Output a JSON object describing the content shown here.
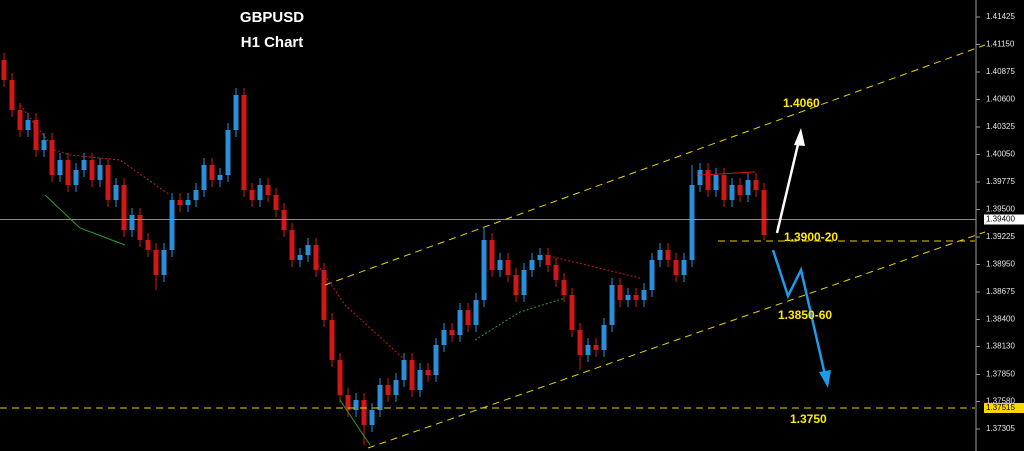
{
  "chart_data": {
    "type": "candlestick",
    "title": "GBPUSD",
    "subtitle": "H1 Chart",
    "annotations": [
      "1.4060",
      "1.3900-20",
      "1.3850-60",
      "1.3750"
    ],
    "up_color": "#2a8fd8",
    "down_color": "#d01818",
    "ylim": [
      1.37085,
      1.41595
    ],
    "yticks": [
      1.41425,
      {
        "value": 1.4115,
        "label": "1.41150"
      },
      1.40875,
      {
        "value": 1.406,
        "label": "1.40600"
      },
      1.40325,
      {
        "value": 1.4005,
        "label": "1.40050"
      },
      1.39775,
      {
        "value": 1.395,
        "label": "1.39500"
      },
      1.39225,
      {
        "value": 1.3895,
        "label": "1.38950"
      },
      1.38675,
      {
        "value": 1.384,
        "label": "1.38400"
      },
      {
        "value": 1.3813,
        "label": "1.38130"
      },
      {
        "value": 1.3785,
        "label": "1.37850"
      },
      {
        "value": 1.3758,
        "label": "1.37580"
      },
      1.37305
    ],
    "price_markers": [
      {
        "value": 1.394,
        "label": "1.39400",
        "color": "#ffffff"
      },
      {
        "value": 1.37515,
        "label": "1.37515",
        "color": "#ffd700"
      }
    ],
    "open": [
      1.40995,
      1.40795,
      1.40495,
      1.40295,
      1.40395,
      1.40095,
      1.40195,
      1.39845,
      1.39995,
      1.39745,
      1.39895,
      1.39995,
      1.39795,
      1.39945,
      1.39595,
      1.39745,
      1.39295,
      1.39445,
      1.39195,
      1.39095,
      1.38845,
      1.39095,
      1.39595,
      1.39545,
      1.39595,
      1.39695,
      1.39945,
      1.39795,
      1.39845,
      1.40295,
      1.40645,
      1.39695,
      1.39595,
      1.39745,
      1.39645,
      1.39495,
      1.39295,
      1.38995,
      1.39045,
      1.39145,
      1.38895,
      1.38395,
      1.37995,
      1.37645,
      1.37495,
      1.37595,
      1.37345,
      1.37495,
      1.37745,
      1.37645,
      1.37795,
      1.37995,
      1.37695,
      1.37895,
      1.37845,
      1.38145,
      1.38295,
      1.38245,
      1.38495,
      1.38345,
      1.38595,
      1.39195,
      1.38895,
      1.38995,
      1.38845,
      1.38645,
      1.38895,
      1.38995,
      1.39045,
      1.38945,
      1.38795,
      1.38645,
      1.38295,
      1.38045,
      1.38145,
      1.38095,
      1.38345,
      1.38745,
      1.38595,
      1.38645,
      1.38595,
      1.38695,
      1.38995,
      1.39095,
      1.38995,
      1.38845,
      1.38995,
      1.39745,
      1.39895,
      1.39695,
      1.39845,
      1.39595,
      1.39745,
      1.39645,
      1.39795,
      1.39695
    ],
    "high": [
      1.41065,
      1.40865,
      1.40565,
      1.40465,
      1.40465,
      1.40265,
      1.40265,
      1.40065,
      1.40065,
      1.39965,
      1.40065,
      1.40065,
      1.40015,
      1.40015,
      1.39815,
      1.39815,
      1.39515,
      1.39515,
      1.39265,
      1.39165,
      1.39165,
      1.39665,
      1.39665,
      1.39665,
      1.39765,
      1.40015,
      1.40015,
      1.39915,
      1.40365,
      1.40715,
      1.40715,
      1.39765,
      1.39815,
      1.39815,
      1.39715,
      1.39565,
      1.39365,
      1.39115,
      1.39215,
      1.39215,
      1.38965,
      1.38465,
      1.38065,
      1.37715,
      1.37665,
      1.37665,
      1.37565,
      1.37815,
      1.37815,
      1.37865,
      1.38065,
      1.38065,
      1.37965,
      1.37965,
      1.38215,
      1.38365,
      1.38365,
      1.38565,
      1.38565,
      1.38665,
      1.39315,
      1.39265,
      1.39065,
      1.39065,
      1.38915,
      1.38965,
      1.39065,
      1.39115,
      1.39115,
      1.39015,
      1.38865,
      1.38715,
      1.38365,
      1.38215,
      1.38215,
      1.38415,
      1.38815,
      1.38815,
      1.38715,
      1.38715,
      1.38765,
      1.39065,
      1.39165,
      1.39165,
      1.39065,
      1.39065,
      1.39945,
      1.39965,
      1.39965,
      1.39915,
      1.39915,
      1.39815,
      1.39815,
      1.39865,
      1.39865,
      1.39765
    ],
    "low": [
      1.40725,
      1.40425,
      1.40225,
      1.40225,
      1.40025,
      1.40025,
      1.39775,
      1.39775,
      1.39675,
      1.39675,
      1.39825,
      1.39725,
      1.39725,
      1.39525,
      1.39525,
      1.39225,
      1.39225,
      1.39125,
      1.39025,
      1.38695,
      1.38775,
      1.39025,
      1.39475,
      1.39475,
      1.39525,
      1.39625,
      1.39725,
      1.39725,
      1.39775,
      1.40225,
      1.39625,
      1.39525,
      1.39525,
      1.39575,
      1.39425,
      1.39225,
      1.38925,
      1.38925,
      1.38975,
      1.38825,
      1.38325,
      1.37925,
      1.37575,
      1.37425,
      1.37425,
      1.37145,
      1.37275,
      1.37425,
      1.37575,
      1.37575,
      1.37725,
      1.37625,
      1.37625,
      1.37775,
      1.37775,
      1.38075,
      1.38175,
      1.38175,
      1.38275,
      1.38275,
      1.38525,
      1.38825,
      1.38825,
      1.38775,
      1.38575,
      1.38575,
      1.38825,
      1.38925,
      1.38875,
      1.38725,
      1.38575,
      1.38225,
      1.37895,
      1.37975,
      1.38025,
      1.38025,
      1.38275,
      1.38525,
      1.38525,
      1.38525,
      1.38525,
      1.38625,
      1.38925,
      1.38925,
      1.38775,
      1.38775,
      1.38925,
      1.39675,
      1.39625,
      1.39625,
      1.39525,
      1.39525,
      1.39575,
      1.39575,
      1.39625,
      1.39195
    ],
    "close": [
      1.40795,
      1.40495,
      1.40295,
      1.40395,
      1.40095,
      1.40195,
      1.39845,
      1.39995,
      1.39745,
      1.39895,
      1.39995,
      1.39795,
      1.39945,
      1.39595,
      1.39745,
      1.39295,
      1.39445,
      1.39195,
      1.39095,
      1.38845,
      1.39095,
      1.39595,
      1.39545,
      1.39595,
      1.39695,
      1.39945,
      1.39795,
      1.39845,
      1.40295,
      1.40645,
      1.39695,
      1.39595,
      1.39745,
      1.39645,
      1.39495,
      1.39295,
      1.38995,
      1.39045,
      1.39145,
      1.38895,
      1.38395,
      1.37995,
      1.37645,
      1.37495,
      1.37595,
      1.37345,
      1.37495,
      1.37745,
      1.37645,
      1.37795,
      1.37995,
      1.37695,
      1.37895,
      1.37845,
      1.38145,
      1.38295,
      1.38245,
      1.38495,
      1.38345,
      1.38595,
      1.39195,
      1.38895,
      1.38995,
      1.38845,
      1.38645,
      1.38895,
      1.38995,
      1.39045,
      1.38945,
      1.38795,
      1.38645,
      1.38295,
      1.38045,
      1.38145,
      1.38095,
      1.38345,
      1.38745,
      1.38595,
      1.38645,
      1.38595,
      1.38695,
      1.38995,
      1.39095,
      1.38995,
      1.38845,
      1.38995,
      1.39745,
      1.39895,
      1.39695,
      1.39845,
      1.39595,
      1.39745,
      1.39645,
      1.39795,
      1.39695,
      1.39245
    ]
  }
}
